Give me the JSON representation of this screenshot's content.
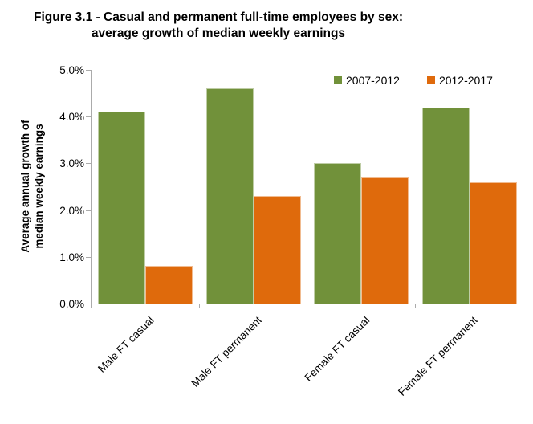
{
  "figure": {
    "title_line1": "Figure 3.1 - Casual and permanent full-time employees by sex:",
    "title_line2": "average growth of median weekly earnings"
  },
  "chart_data": {
    "type": "bar",
    "title": "Figure 3.1 - Casual and permanent full-time employees by sex: average growth of median weekly earnings",
    "ylabel_line1": "Average annual growth of",
    "ylabel_line2": "median weekly earnings",
    "xlabel": "",
    "categories": [
      "Male FT casual",
      "Male FT permanent",
      "Female FT casual",
      "Female FT permanent"
    ],
    "series": [
      {
        "name": "2007-2012",
        "color": "#71913A",
        "values": [
          4.1,
          4.6,
          3.0,
          4.2
        ]
      },
      {
        "name": "2012-2017",
        "color": "#DF6A0C",
        "values": [
          0.8,
          2.3,
          2.7,
          2.6
        ]
      }
    ],
    "ylim": [
      0,
      5
    ],
    "y_ticks": [
      {
        "value": 5,
        "label": "5.0%"
      },
      {
        "value": 4,
        "label": "4.0%"
      },
      {
        "value": 3,
        "label": "3.0%"
      },
      {
        "value": 2,
        "label": "2.0%"
      },
      {
        "value": 1,
        "label": "1.0%"
      },
      {
        "value": 0,
        "label": "0.0%"
      }
    ],
    "grid": false,
    "legend_position": "top-right-inside",
    "category_label_rotation_deg": 45
  },
  "colors": {
    "background": "#FFFFFF",
    "axis": "#ABABAB",
    "text": "#000000",
    "series_green": "#71913A",
    "series_orange": "#DF6A0C"
  }
}
